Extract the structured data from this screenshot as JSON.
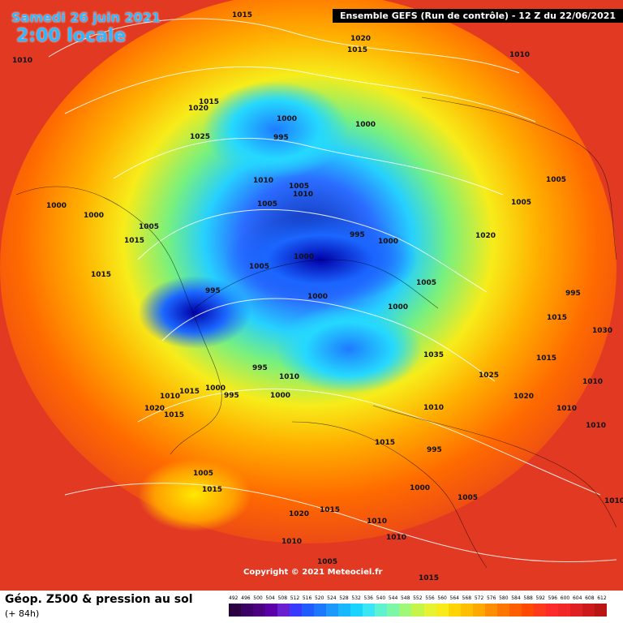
{
  "header": {
    "date": "Samedi 26 juin 2021",
    "time": "2:00 locale",
    "run": "Ensemble GEFS  (Run de contrôle)  -  12 Z du 22/06/2021"
  },
  "map": {
    "copyright": "Copyright © 2021 Meteociel.fr",
    "labels": [
      "1015",
      "1020",
      "1010",
      "1015",
      "1010",
      "1015",
      "1020",
      "1025",
      "1000",
      "995",
      "1000",
      "1010",
      "1005",
      "1010",
      "1005",
      "1005",
      "995",
      "1000",
      "1000",
      "1000",
      "1005",
      "1015",
      "1015",
      "1005",
      "1000",
      "995",
      "1000",
      "1000",
      "1005",
      "1020",
      "1005",
      "995",
      "1015",
      "1030",
      "1035",
      "1025",
      "1020",
      "1015",
      "1010",
      "1010",
      "1010",
      "1010",
      "1015",
      "995",
      "1000",
      "1005",
      "1010",
      "995",
      "1010",
      "1000",
      "995",
      "1000",
      "1010",
      "1015",
      "1020",
      "1015",
      "1005",
      "1015",
      "1020",
      "1015",
      "1010",
      "1010",
      "1010",
      "1005",
      "1015"
    ]
  },
  "legend": {
    "title": "Géop. Z500 & pression au sol",
    "subtitle": "(+ 84h)",
    "scale": [
      "492",
      "496",
      "500",
      "504",
      "508",
      "512",
      "516",
      "520",
      "524",
      "528",
      "532",
      "536",
      "540",
      "544",
      "548",
      "552",
      "556",
      "560",
      "564",
      "568",
      "572",
      "576",
      "580",
      "584",
      "588",
      "592",
      "596",
      "600",
      "604",
      "608",
      "612"
    ],
    "colors": [
      "#2a003f",
      "#3b0063",
      "#4b0082",
      "#5a00a8",
      "#6a1fd1",
      "#3a3aff",
      "#1f5bff",
      "#1c79ff",
      "#1c98ff",
      "#19b7ff",
      "#19d4ff",
      "#3ae6f5",
      "#5ef2d1",
      "#7bf7a7",
      "#9df977",
      "#c6f54a",
      "#e6f332",
      "#f7ec1a",
      "#ffd400",
      "#ffbf00",
      "#ffa800",
      "#ff8f00",
      "#ff7600",
      "#ff5e00",
      "#ff4a00",
      "#ff3a1a",
      "#ff2a2a",
      "#f22828",
      "#e02020",
      "#cc1a1a",
      "#b81515"
    ],
    "background_color": "#e23a22"
  }
}
